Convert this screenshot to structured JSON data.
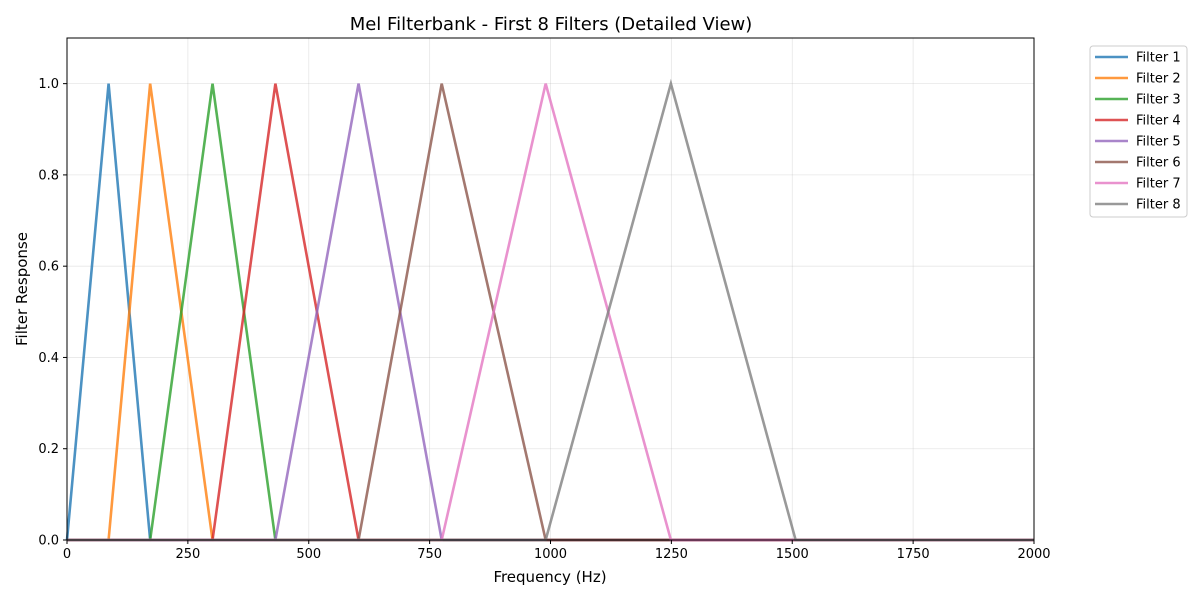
{
  "chart_data": {
    "type": "line",
    "title": "Mel Filterbank - First 8 Filters (Detailed View)",
    "xlabel": "Frequency (Hz)",
    "ylabel": "Filter Response",
    "xlim": [
      0,
      2000
    ],
    "ylim": [
      0,
      1.1
    ],
    "xticks": [
      0,
      250,
      500,
      750,
      1000,
      1250,
      1500,
      1750,
      2000
    ],
    "yticks": [
      0.0,
      0.2,
      0.4,
      0.6,
      0.8,
      1.0
    ],
    "ytick_labels": [
      "0.0",
      "0.2",
      "0.4",
      "0.6",
      "0.8",
      "1.0"
    ],
    "grid": true,
    "legend_position": "outside-top-right",
    "series": [
      {
        "name": "Filter 1",
        "color": "#1f77b4",
        "x": [
          0,
          86,
          172,
          2000
        ],
        "y": [
          0,
          1,
          0,
          0
        ]
      },
      {
        "name": "Filter 2",
        "color": "#ff7f0e",
        "x": [
          0,
          86,
          172,
          301,
          2000
        ],
        "y": [
          0,
          0,
          1,
          0,
          0
        ]
      },
      {
        "name": "Filter 3",
        "color": "#2ca02c",
        "x": [
          0,
          172,
          301,
          431,
          2000
        ],
        "y": [
          0,
          0,
          1,
          0,
          0
        ]
      },
      {
        "name": "Filter 4",
        "color": "#d62728",
        "x": [
          0,
          301,
          431,
          603,
          2000
        ],
        "y": [
          0,
          0,
          1,
          0,
          0
        ]
      },
      {
        "name": "Filter 5",
        "color": "#9467bd",
        "x": [
          0,
          431,
          603,
          775,
          2000
        ],
        "y": [
          0,
          0,
          1,
          0,
          0
        ]
      },
      {
        "name": "Filter 6",
        "color": "#8c564b",
        "x": [
          0,
          603,
          775,
          990,
          2000
        ],
        "y": [
          0,
          0,
          1,
          0,
          0
        ]
      },
      {
        "name": "Filter 7",
        "color": "#e377c2",
        "x": [
          0,
          775,
          990,
          1249,
          2000
        ],
        "y": [
          0,
          0,
          1,
          0,
          0
        ]
      },
      {
        "name": "Filter 8",
        "color": "#7f7f7f",
        "x": [
          0,
          990,
          1249,
          1507,
          2000
        ],
        "y": [
          0,
          0,
          1,
          0,
          0
        ]
      }
    ]
  }
}
